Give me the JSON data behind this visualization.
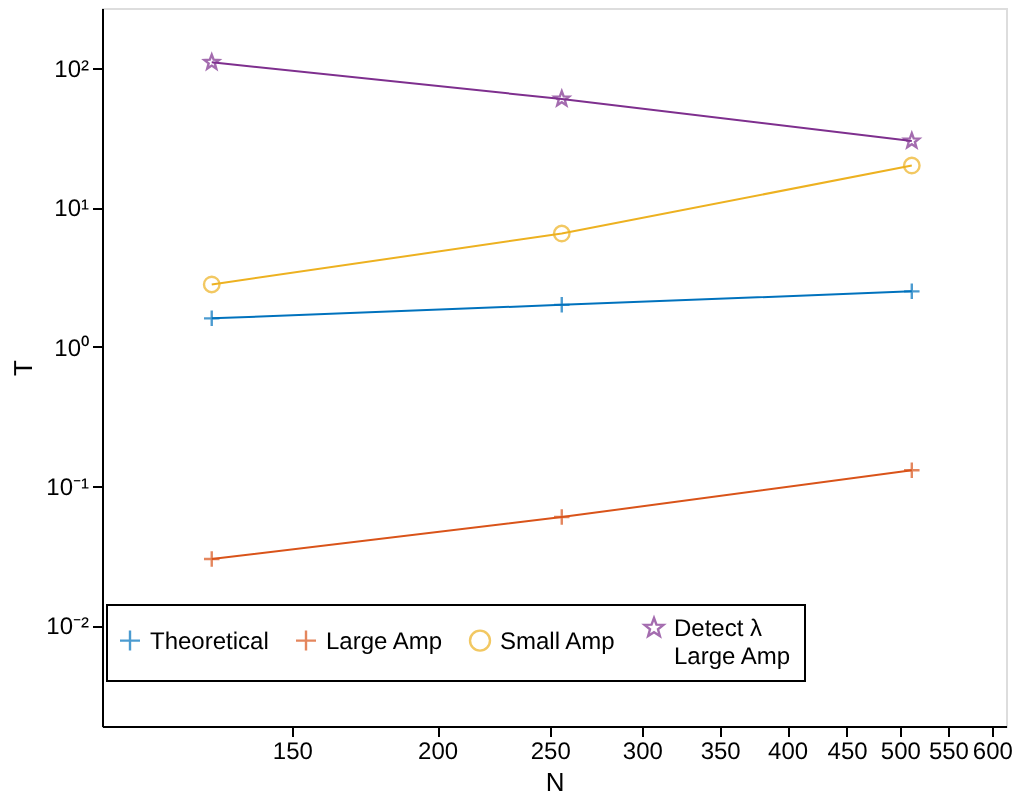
{
  "chart_data": {
    "type": "line",
    "xlabel": "N",
    "ylabel": "T",
    "x": [
      128,
      256,
      512
    ],
    "series": [
      {
        "name": "Theoretical",
        "color": "#0072bd",
        "marker": "cross",
        "values": [
          1.6,
          2.0,
          2.5
        ]
      },
      {
        "name": "Large Amp",
        "color": "#d95319",
        "marker": "cross",
        "values": [
          0.03,
          0.06,
          0.13
        ]
      },
      {
        "name": "Small Amp",
        "color": "#edb120",
        "marker": "circle",
        "values": [
          2.8,
          6.5,
          20
        ]
      },
      {
        "name": "Detect λ\nLarge Amp",
        "color": "#7e2f8e",
        "marker": "star",
        "values": [
          110,
          60,
          30
        ]
      }
    ],
    "log": "xy",
    "xlim": [
      103,
      617
    ],
    "ylim": [
      0.0019,
      270
    ],
    "xticks": [
      150,
      200,
      250,
      300,
      350,
      400,
      450,
      500,
      550,
      600
    ],
    "yticks": [
      {
        "value": 0.01,
        "label": "10⁻²"
      },
      {
        "value": 0.1,
        "label": "10⁻¹"
      },
      {
        "value": 1,
        "label": "10⁰"
      },
      {
        "value": 10,
        "label": "10¹"
      },
      {
        "value": 100,
        "label": "10²"
      }
    ],
    "grid": false,
    "legend": "bottom"
  }
}
